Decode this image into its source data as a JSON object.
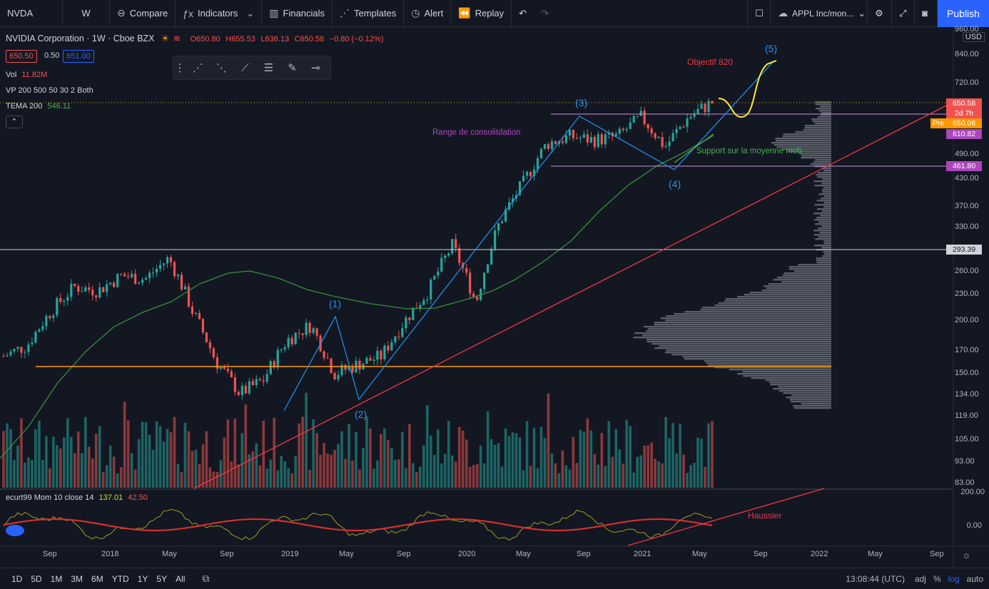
{
  "toolbar": {
    "symbol": "NVDA",
    "interval": "W",
    "compare": "Compare",
    "indicators": "Indicators",
    "financials": "Financials",
    "templates": "Templates",
    "alert": "Alert",
    "replay": "Replay",
    "layout_name": "APPL Inc/mon...",
    "publish": "Publish"
  },
  "legend": {
    "title": "NVIDIA Corporation · 1W · Cboe BZX",
    "open": "O650.80",
    "high": "H655.53",
    "low": "L636.13",
    "close": "C650.58",
    "change": "−0.80 (−0.12%)",
    "bid": "650.50",
    "spread": "0.50",
    "ask": "651.00",
    "vol_label": "Vol",
    "vol_value": "11.82M",
    "vp_label": "VP 200 500 50 30 2 Both",
    "tema_label": "TEMA 200",
    "tema_value": "546.11"
  },
  "oscillator": {
    "label": "ecurt99 Mom 10 close 14",
    "v1": "137.01",
    "v2": "42.50",
    "axis_top": "200.00",
    "axis_zero": "0.00"
  },
  "annotations": {
    "consolidation": "Range de consolitdation",
    "support": "Support sur la moyenne mob",
    "objective": "Objectif 820",
    "haussier": "Haussier",
    "wave1": "(1)",
    "wave2": "(2)",
    "wave3": "(3)",
    "wave4": "(4)",
    "wave5": "(5)"
  },
  "price_axis": [
    "960.00",
    "840.00",
    "720.00",
    "650.58",
    "610.82",
    "490.00",
    "461.80",
    "430.00",
    "370.00",
    "330.00",
    "293.39",
    "260.00",
    "230.00",
    "200.00",
    "170.00",
    "150.00",
    "134.00",
    "119.00",
    "105.00",
    "93.00",
    "83.00"
  ],
  "price_axis_ticks": [
    {
      "label": "960.00",
      "v": 960
    },
    {
      "label": "840.00",
      "v": 840
    },
    {
      "label": "720.00",
      "v": 720
    },
    {
      "label": "490.00",
      "v": 490
    },
    {
      "label": "430.00",
      "v": 430
    },
    {
      "label": "370.00",
      "v": 370
    },
    {
      "label": "330.00",
      "v": 330
    },
    {
      "label": "260.00",
      "v": 260
    },
    {
      "label": "230.00",
      "v": 230
    },
    {
      "label": "200.00",
      "v": 200
    },
    {
      "label": "170.00",
      "v": 170
    },
    {
      "label": "150.00",
      "v": 150
    },
    {
      "label": "134.00",
      "v": 134
    },
    {
      "label": "119.00",
      "v": 119
    },
    {
      "label": "105.00",
      "v": 105
    },
    {
      "label": "93.00",
      "v": 93
    },
    {
      "label": "83.00",
      "v": 83
    }
  ],
  "price_tags": {
    "last": "650.58",
    "countdown": "2d 7h",
    "pre_label": "Pre",
    "pre_value": "650.06",
    "level_a": "610.82",
    "level_b": "461.80",
    "level_c": "293.39",
    "currency": "USD"
  },
  "time_axis": [
    "Sep",
    "2018",
    "May",
    "Sep",
    "2019",
    "May",
    "Sep",
    "2020",
    "May",
    "Sep",
    "2021",
    "May",
    "Sep",
    "2022",
    "May",
    "Sep"
  ],
  "bottombar": {
    "timeframes": [
      "1D",
      "5D",
      "1M",
      "3M",
      "6M",
      "YTD",
      "1Y",
      "5Y",
      "All"
    ],
    "clock": "13:08:44 (UTC)",
    "adj": "adj",
    "pct": "%",
    "log": "log",
    "auto": "auto"
  },
  "colors": {
    "bg": "#131722",
    "up": "#26a69a",
    "down": "#ef5350",
    "accent": "#2962ff",
    "wave_line": "#2196f3",
    "trend_red": "#f23645",
    "ma_green": "#388e3c",
    "range_purple": "#ce93d8",
    "orange_line": "#ff9800",
    "yellow": "#ffeb3b"
  },
  "chart_data": {
    "type": "candlestick",
    "symbol": "NVDA",
    "interval": "1W",
    "ylim": [
      83,
      960
    ],
    "log_scale": true,
    "close_approx": [
      {
        "t": "2017-07",
        "c": 165
      },
      {
        "t": "2017-09",
        "c": 175
      },
      {
        "t": "2017-11",
        "c": 210
      },
      {
        "t": "2018-01",
        "c": 240
      },
      {
        "t": "2018-03",
        "c": 235
      },
      {
        "t": "2018-05",
        "c": 255
      },
      {
        "t": "2018-07",
        "c": 250
      },
      {
        "t": "2018-09",
        "c": 280
      },
      {
        "t": "2018-10",
        "c": 210
      },
      {
        "t": "2018-11",
        "c": 160
      },
      {
        "t": "2018-12",
        "c": 135
      },
      {
        "t": "2019-01",
        "c": 145
      },
      {
        "t": "2019-03",
        "c": 180
      },
      {
        "t": "2019-04",
        "c": 195
      },
      {
        "t": "2019-05",
        "c": 150
      },
      {
        "t": "2019-06",
        "c": 158
      },
      {
        "t": "2019-08",
        "c": 165
      },
      {
        "t": "2019-10",
        "c": 200
      },
      {
        "t": "2019-12",
        "c": 235
      },
      {
        "t": "2020-02",
        "c": 300
      },
      {
        "t": "2020-03",
        "c": 220
      },
      {
        "t": "2020-05",
        "c": 340
      },
      {
        "t": "2020-07",
        "c": 420
      },
      {
        "t": "2020-08",
        "c": 520
      },
      {
        "t": "2020-09",
        "c": 540
      },
      {
        "t": "2020-11",
        "c": 530
      },
      {
        "t": "2021-01",
        "c": 540
      },
      {
        "t": "2021-02",
        "c": 600
      },
      {
        "t": "2021-03",
        "c": 510
      },
      {
        "t": "2021-04",
        "c": 600
      },
      {
        "t": "2021-05",
        "c": 650
      }
    ]
  }
}
